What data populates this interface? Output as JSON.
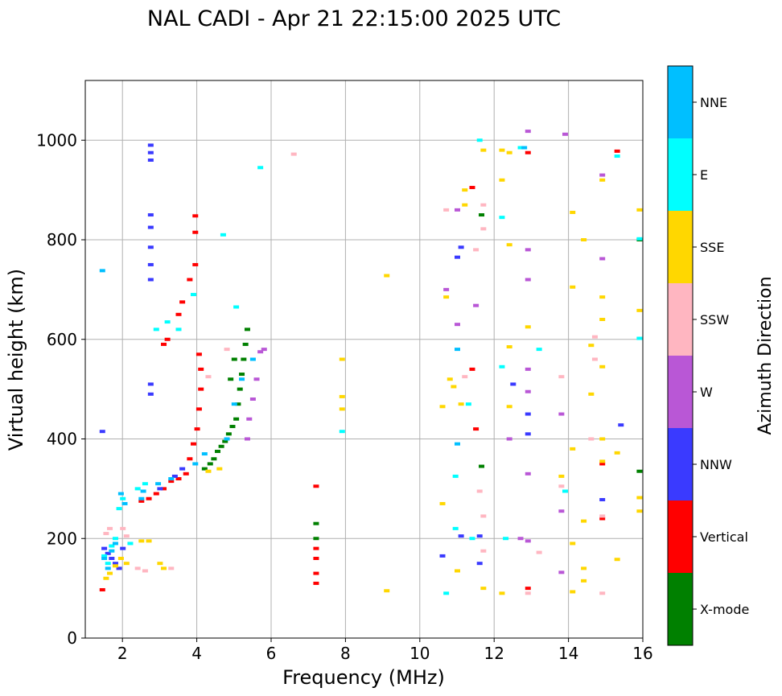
{
  "chart_data": {
    "type": "scatter",
    "title": "NAL CADI - Apr 21 22:15:00 2025 UTC",
    "xlabel": "Frequency (MHz)",
    "ylabel": "Virtual height (km)",
    "xlim": [
      1,
      16
    ],
    "ylim": [
      0,
      1120
    ],
    "xticks": [
      2,
      4,
      6,
      8,
      10,
      12,
      14,
      16
    ],
    "yticks": [
      0,
      200,
      400,
      600,
      800,
      1000
    ],
    "grid": true,
    "colorbar": {
      "label": "Azimuth Direction",
      "categories": [
        {
          "name": "X-mode",
          "color": "#008000"
        },
        {
          "name": "Vertical",
          "color": "#ff0000"
        },
        {
          "name": "NNW",
          "color": "#3a3aff"
        },
        {
          "name": "W",
          "color": "#b957d6"
        },
        {
          "name": "SSW",
          "color": "#ffb6c1"
        },
        {
          "name": "SSE",
          "color": "#ffd700"
        },
        {
          "name": "E",
          "color": "#00ffff"
        },
        {
          "name": "NNE",
          "color": "#00bfff"
        }
      ]
    },
    "segments": [
      {
        "name": "X-mode",
        "points": [
          [
            4.2,
            340
          ],
          [
            4.35,
            350
          ],
          [
            4.45,
            360
          ],
          [
            4.55,
            375
          ],
          [
            4.65,
            385
          ],
          [
            4.75,
            395
          ],
          [
            4.85,
            410
          ],
          [
            4.95,
            425
          ],
          [
            5.05,
            440
          ],
          [
            5.1,
            470
          ],
          [
            5.15,
            500
          ],
          [
            5.2,
            530
          ],
          [
            5.25,
            560
          ],
          [
            5.3,
            590
          ],
          [
            5.35,
            620
          ],
          [
            4.9,
            520
          ],
          [
            5.0,
            560
          ],
          [
            7.2,
            230
          ],
          [
            7.2,
            200
          ],
          [
            15.9,
            335
          ],
          [
            15.9,
            800
          ],
          [
            11.65,
            345
          ],
          [
            11.65,
            850
          ]
        ]
      },
      {
        "name": "Vertical",
        "points": [
          [
            2.5,
            275
          ],
          [
            2.7,
            280
          ],
          [
            2.9,
            290
          ],
          [
            3.1,
            300
          ],
          [
            3.3,
            315
          ],
          [
            3.5,
            320
          ],
          [
            3.7,
            330
          ],
          [
            3.8,
            360
          ],
          [
            3.9,
            390
          ],
          [
            4.0,
            420
          ],
          [
            4.05,
            460
          ],
          [
            4.1,
            500
          ],
          [
            4.1,
            540
          ],
          [
            4.05,
            570
          ],
          [
            3.1,
            590
          ],
          [
            3.2,
            600
          ],
          [
            3.5,
            650
          ],
          [
            3.6,
            675
          ],
          [
            3.8,
            720
          ],
          [
            3.95,
            750
          ],
          [
            3.95,
            815
          ],
          [
            3.95,
            848
          ],
          [
            1.45,
            97
          ],
          [
            7.2,
            180
          ],
          [
            7.2,
            160
          ],
          [
            7.2,
            130
          ],
          [
            7.2,
            110
          ],
          [
            7.2,
            305
          ],
          [
            11.5,
            420
          ],
          [
            11.4,
            540
          ],
          [
            11.4,
            905
          ],
          [
            12.9,
            975
          ],
          [
            12.9,
            100
          ],
          [
            14.9,
            240
          ],
          [
            14.9,
            350
          ],
          [
            15.3,
            978
          ]
        ]
      },
      {
        "name": "NNW",
        "points": [
          [
            1.5,
            180
          ],
          [
            1.6,
            170
          ],
          [
            1.7,
            160
          ],
          [
            1.8,
            150
          ],
          [
            1.9,
            140
          ],
          [
            2.0,
            180
          ],
          [
            1.45,
            415
          ],
          [
            2.75,
            990
          ],
          [
            2.75,
            975
          ],
          [
            2.75,
            960
          ],
          [
            2.75,
            850
          ],
          [
            2.75,
            825
          ],
          [
            2.75,
            785
          ],
          [
            2.75,
            750
          ],
          [
            2.75,
            720
          ],
          [
            2.75,
            510
          ],
          [
            2.75,
            490
          ],
          [
            3.0,
            300
          ],
          [
            3.6,
            340
          ],
          [
            3.4,
            325
          ],
          [
            11.1,
            785
          ],
          [
            11.0,
            765
          ],
          [
            11.6,
            205
          ],
          [
            11.6,
            150
          ],
          [
            12.5,
            510
          ],
          [
            12.9,
            450
          ],
          [
            12.9,
            410
          ],
          [
            15.4,
            428
          ],
          [
            14.9,
            278
          ],
          [
            11.1,
            205
          ],
          [
            10.6,
            165
          ]
        ]
      },
      {
        "name": "W",
        "points": [
          [
            5.7,
            575
          ],
          [
            5.8,
            580
          ],
          [
            5.6,
            520
          ],
          [
            5.5,
            480
          ],
          [
            5.4,
            440
          ],
          [
            5.35,
            400
          ],
          [
            12.9,
            1018
          ],
          [
            13.9,
            1012
          ],
          [
            12.9,
            780
          ],
          [
            12.9,
            720
          ],
          [
            12.9,
            540
          ],
          [
            12.9,
            495
          ],
          [
            12.4,
            400
          ],
          [
            12.9,
            330
          ],
          [
            12.9,
            195
          ],
          [
            12.7,
            200
          ],
          [
            13.8,
            450
          ],
          [
            13.8,
            255
          ],
          [
            13.8,
            132
          ],
          [
            14.9,
            762
          ],
          [
            14.9,
            930
          ],
          [
            11.5,
            668
          ],
          [
            11.0,
            630
          ],
          [
            10.7,
            700
          ],
          [
            11.0,
            860
          ]
        ]
      },
      {
        "name": "SSW",
        "points": [
          [
            1.55,
            210
          ],
          [
            1.65,
            220
          ],
          [
            2.0,
            220
          ],
          [
            2.1,
            205
          ],
          [
            2.4,
            140
          ],
          [
            2.6,
            135
          ],
          [
            3.3,
            140
          ],
          [
            4.3,
            525
          ],
          [
            4.8,
            580
          ],
          [
            6.6,
            972
          ],
          [
            10.7,
            860
          ],
          [
            11.2,
            525
          ],
          [
            11.5,
            780
          ],
          [
            11.7,
            870
          ],
          [
            11.7,
            822
          ],
          [
            11.7,
            245
          ],
          [
            11.7,
            175
          ],
          [
            13.8,
            525
          ],
          [
            13.8,
            305
          ],
          [
            13.2,
            172
          ],
          [
            14.7,
            560
          ],
          [
            14.7,
            605
          ],
          [
            14.6,
            400
          ],
          [
            14.9,
            245
          ],
          [
            14.9,
            90
          ],
          [
            12.9,
            90
          ],
          [
            11.6,
            295
          ]
        ]
      },
      {
        "name": "SSE",
        "points": [
          [
            1.55,
            120
          ],
          [
            1.65,
            130
          ],
          [
            1.8,
            145
          ],
          [
            1.95,
            160
          ],
          [
            2.1,
            150
          ],
          [
            2.5,
            195
          ],
          [
            2.7,
            195
          ],
          [
            3.0,
            150
          ],
          [
            3.1,
            140
          ],
          [
            4.3,
            335
          ],
          [
            4.6,
            340
          ],
          [
            7.9,
            560
          ],
          [
            7.9,
            485
          ],
          [
            7.9,
            460
          ],
          [
            9.1,
            728
          ],
          [
            9.1,
            95
          ],
          [
            10.6,
            270
          ],
          [
            10.6,
            465
          ],
          [
            10.8,
            520
          ],
          [
            10.9,
            505
          ],
          [
            11.0,
            135
          ],
          [
            11.1,
            470
          ],
          [
            11.2,
            900
          ],
          [
            11.2,
            870
          ],
          [
            12.2,
            980
          ],
          [
            12.2,
            920
          ],
          [
            12.4,
            975
          ],
          [
            12.4,
            790
          ],
          [
            12.4,
            585
          ],
          [
            12.4,
            465
          ],
          [
            12.2,
            90
          ],
          [
            12.9,
            625
          ],
          [
            13.8,
            325
          ],
          [
            14.1,
            855
          ],
          [
            14.1,
            705
          ],
          [
            14.1,
            380
          ],
          [
            14.1,
            190
          ],
          [
            14.1,
            93
          ],
          [
            14.4,
            800
          ],
          [
            14.4,
            235
          ],
          [
            14.4,
            140
          ],
          [
            14.4,
            115
          ],
          [
            14.9,
            920
          ],
          [
            14.9,
            685
          ],
          [
            14.9,
            640
          ],
          [
            14.9,
            545
          ],
          [
            14.9,
            400
          ],
          [
            14.9,
            355
          ],
          [
            14.6,
            490
          ],
          [
            14.6,
            588
          ],
          [
            15.9,
            860
          ],
          [
            15.9,
            658
          ],
          [
            15.9,
            282
          ],
          [
            15.9,
            255
          ],
          [
            15.3,
            372
          ],
          [
            15.3,
            158
          ],
          [
            10.7,
            685
          ],
          [
            11.7,
            980
          ],
          [
            11.7,
            100
          ]
        ]
      },
      {
        "name": "E",
        "points": [
          [
            1.5,
            165
          ],
          [
            1.6,
            150
          ],
          [
            1.7,
            185
          ],
          [
            1.8,
            200
          ],
          [
            1.9,
            260
          ],
          [
            2.0,
            280
          ],
          [
            2.2,
            190
          ],
          [
            2.4,
            300
          ],
          [
            2.6,
            310
          ],
          [
            2.9,
            620
          ],
          [
            3.2,
            635
          ],
          [
            3.5,
            620
          ],
          [
            3.9,
            690
          ],
          [
            4.7,
            810
          ],
          [
            5.05,
            665
          ],
          [
            5.7,
            945
          ],
          [
            7.9,
            415
          ],
          [
            10.95,
            325
          ],
          [
            10.95,
            220
          ],
          [
            10.7,
            90
          ],
          [
            11.3,
            470
          ],
          [
            11.4,
            200
          ],
          [
            12.2,
            845
          ],
          [
            12.2,
            545
          ],
          [
            12.3,
            200
          ],
          [
            13.2,
            580
          ],
          [
            13.9,
            295
          ],
          [
            15.3,
            968
          ],
          [
            15.9,
            802
          ],
          [
            15.9,
            602
          ],
          [
            11.6,
            1000
          ],
          [
            12.7,
            985
          ]
        ]
      },
      {
        "name": "NNE",
        "points": [
          [
            1.45,
            738
          ],
          [
            1.5,
            160
          ],
          [
            1.6,
            140
          ],
          [
            1.7,
            175
          ],
          [
            1.8,
            190
          ],
          [
            1.95,
            290
          ],
          [
            2.05,
            270
          ],
          [
            2.5,
            280
          ],
          [
            2.55,
            295
          ],
          [
            2.95,
            310
          ],
          [
            3.3,
            320
          ],
          [
            3.95,
            350
          ],
          [
            4.2,
            370
          ],
          [
            4.8,
            400
          ],
          [
            5.0,
            470
          ],
          [
            5.2,
            520
          ],
          [
            5.5,
            560
          ],
          [
            11.0,
            580
          ],
          [
            11.0,
            390
          ],
          [
            12.8,
            985
          ]
        ]
      }
    ]
  }
}
